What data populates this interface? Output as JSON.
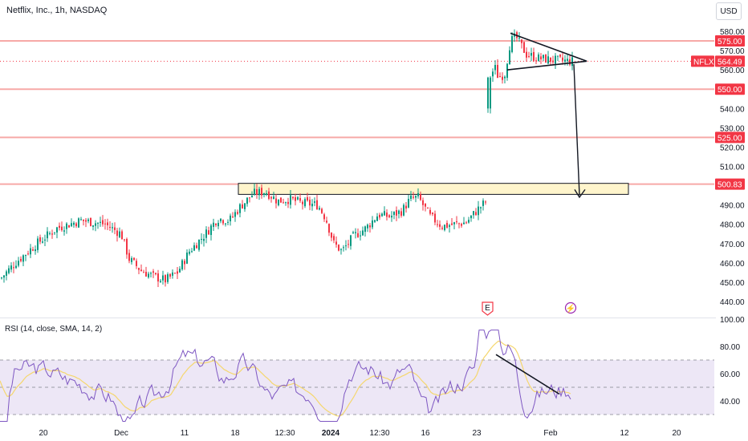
{
  "chart_title": "Netflix, Inc., 1h, NASDAQ",
  "currency_button": "USD",
  "price_axis_ticks": [
    "580.00",
    "570.00",
    "560.00",
    "540.00",
    "530.00",
    "520.00",
    "510.00",
    "490.00",
    "480.00",
    "470.00",
    "460.00",
    "450.00",
    "440.00"
  ],
  "levels": [
    {
      "price": 575.0,
      "label": "575.00"
    },
    {
      "price": 550.0,
      "label": "550.00"
    },
    {
      "price": 525.0,
      "label": "525.00"
    },
    {
      "price": 500.83,
      "label": "500.83"
    }
  ],
  "last_price": {
    "ticker": "NFLX",
    "price": 564.49,
    "label": "564.49"
  },
  "time_axis_labels": [
    "20",
    "Dec",
    "11",
    "18",
    "12:30",
    "2024",
    "12:30",
    "16",
    "23",
    "Feb",
    "12",
    "20"
  ],
  "event_markers": [
    {
      "type": "earnings",
      "glyph": "E"
    },
    {
      "type": "dividend",
      "glyph": "⚡"
    }
  ],
  "rsi": {
    "label": "RSI (14, close, SMA, 14, 2)",
    "axis_ticks": [
      "100.00",
      "80.00",
      "60.00",
      "40.00"
    ],
    "upper_band": 70,
    "middle": 50,
    "lower_band": 30
  },
  "colors": {
    "up": "#089981",
    "down": "#f23645",
    "level_line": "#f7a9a7",
    "badge": "#f23645",
    "rsi_line": "#7e57c2",
    "rsi_ma": "#f5d76e",
    "rsi_fill": "#ede7f6",
    "zone_fill": "#fff5cc"
  },
  "chart_data": {
    "type": "candlestick",
    "title": "Netflix, Inc., 1h, NASDAQ",
    "ylim": [
      435,
      585
    ],
    "series": [
      {
        "name": "NFLX",
        "approx_close_path": [
          [
            0,
            452
          ],
          [
            18,
            460
          ],
          [
            45,
            470
          ],
          [
            70,
            478
          ],
          [
            100,
            482
          ],
          [
            130,
            480
          ],
          [
            150,
            475
          ],
          [
            160,
            462
          ],
          [
            175,
            456
          ],
          [
            190,
            453
          ],
          [
            205,
            451
          ],
          [
            220,
            455
          ],
          [
            235,
            466
          ],
          [
            255,
            475
          ],
          [
            270,
            483
          ],
          [
            285,
            482
          ],
          [
            298,
            489
          ],
          [
            315,
            496
          ],
          [
            330,
            497
          ],
          [
            345,
            492
          ],
          [
            360,
            493
          ],
          [
            375,
            491
          ],
          [
            395,
            490
          ],
          [
            405,
            483
          ],
          [
            415,
            470
          ],
          [
            425,
            466
          ],
          [
            440,
            474
          ],
          [
            455,
            478
          ],
          [
            470,
            485
          ],
          [
            485,
            484
          ],
          [
            500,
            487
          ],
          [
            510,
            493
          ],
          [
            520,
            494
          ],
          [
            535,
            484
          ],
          [
            550,
            479
          ],
          [
            565,
            480
          ],
          [
            580,
            481
          ],
          [
            595,
            488
          ],
          [
            605,
            492
          ],
          [
            610,
            555
          ],
          [
            615,
            562
          ],
          [
            620,
            556
          ],
          [
            628,
            558
          ],
          [
            635,
            575
          ],
          [
            642,
            577
          ],
          [
            655,
            568
          ],
          [
            670,
            566
          ],
          [
            690,
            565
          ],
          [
            710,
            564.49
          ]
        ]
      }
    ],
    "annotations": [
      "symmetrical triangle",
      "target arrow to 500.83",
      "support zone ~496-501",
      "RSI divergence trendline"
    ]
  }
}
